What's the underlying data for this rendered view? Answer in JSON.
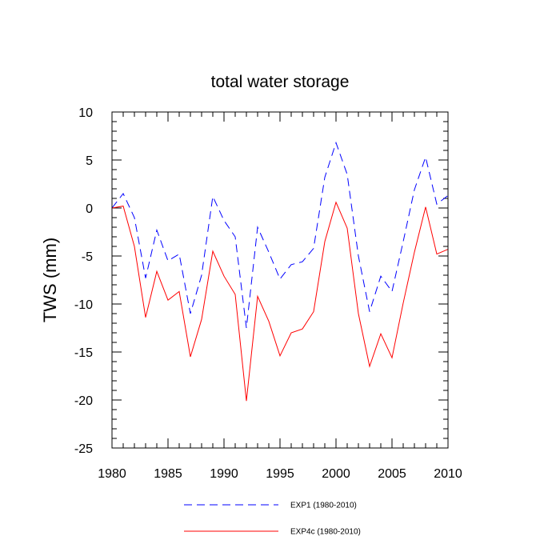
{
  "chart_data": {
    "type": "line",
    "title": "total water storage",
    "xlabel": "",
    "ylabel": "TWS  (mm)",
    "xlim": [
      1980,
      2010
    ],
    "ylim": [
      -25,
      10
    ],
    "x_ticks": [
      1980,
      1985,
      1990,
      1995,
      2000,
      2005,
      2010
    ],
    "y_ticks": [
      10,
      5,
      0,
      -5,
      -10,
      -15,
      -20,
      -25
    ],
    "x": [
      1980,
      1981,
      1982,
      1983,
      1984,
      1985,
      1986,
      1987,
      1988,
      1989,
      1990,
      1991,
      1992,
      1993,
      1994,
      1995,
      1996,
      1997,
      1998,
      1999,
      2000,
      2001,
      2002,
      2003,
      2004,
      2005,
      2006,
      2007,
      2008,
      2009,
      2010
    ],
    "series": [
      {
        "name": "EXP1 (1980-2010)",
        "color": "#0000ff",
        "style": "dashed",
        "values": [
          0,
          1.5,
          -1,
          -7.3,
          -2.3,
          -5.5,
          -4.8,
          -11,
          -7,
          1.2,
          -1.3,
          -3,
          -12.5,
          -2,
          -4.6,
          -7.4,
          -5.9,
          -5.6,
          -4.2,
          3.2,
          6.8,
          3.5,
          -5,
          -10.8,
          -7.1,
          -8.7,
          -3.5,
          1.9,
          5.3,
          0.4,
          1.3
        ]
      },
      {
        "name": "EXP4c (1980-2010)",
        "color": "#ff0000",
        "style": "solid",
        "values": [
          0,
          0.2,
          -4,
          -11.4,
          -6.6,
          -9.6,
          -8.7,
          -15.5,
          -11.6,
          -4.5,
          -7.1,
          -9,
          -20.1,
          -9.2,
          -11.8,
          -15.4,
          -13,
          -12.6,
          -10.8,
          -3.5,
          0.6,
          -2.1,
          -11,
          -16.5,
          -13.1,
          -15.6,
          -9.9,
          -4.6,
          0.1,
          -4.8,
          -4.3
        ]
      }
    ],
    "legend_position": "bottom"
  }
}
